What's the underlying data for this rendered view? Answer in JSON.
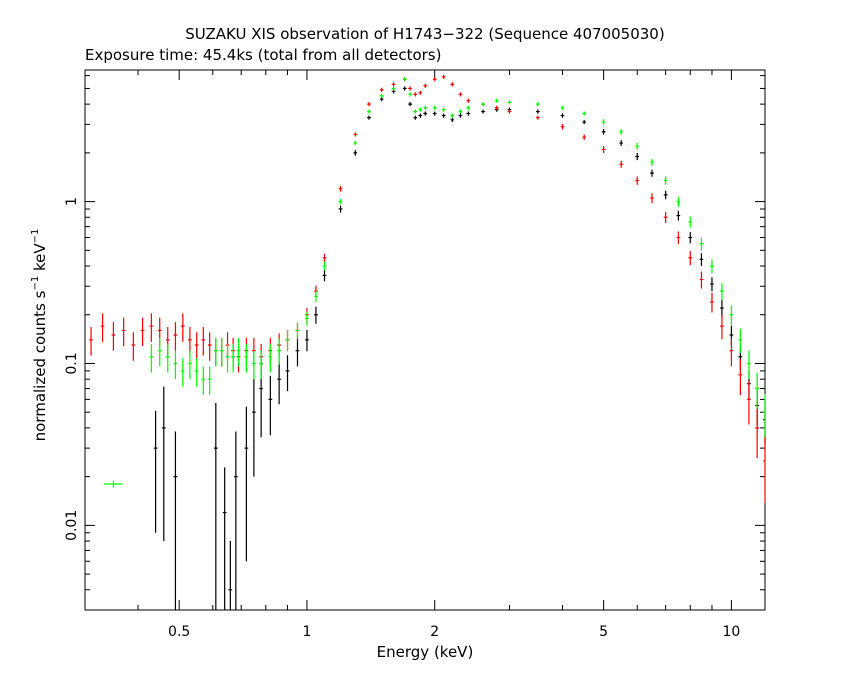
{
  "chart_data": {
    "type": "scatter",
    "title": "SUZAKU XIS observation of H1743−322 (Sequence 407005030)",
    "subtitle": "Exposure time: 45.4ks (total from all detectors)",
    "xlabel": "Energy (keV)",
    "ylabel_main": "normalized counts s",
    "ylabel_mid": " keV",
    "ylabel_sup": "−1",
    "xscale": "log",
    "yscale": "log",
    "xlim": [
      0.3,
      12
    ],
    "ylim": [
      0.003,
      6.5
    ],
    "x_ticks": [
      {
        "value": 0.5,
        "label": "0.5"
      },
      {
        "value": 1,
        "label": "1"
      },
      {
        "value": 2,
        "label": "2"
      },
      {
        "value": 5,
        "label": "5"
      },
      {
        "value": 10,
        "label": "10"
      }
    ],
    "y_ticks": [
      {
        "value": 0.01,
        "label": "0.01"
      },
      {
        "value": 0.1,
        "label": "0.1"
      },
      {
        "value": 1,
        "label": "1"
      }
    ],
    "grid": false,
    "series": [
      {
        "color": "#000000",
        "x": [
          0.44,
          0.46,
          0.49,
          0.61,
          0.64,
          0.66,
          0.68,
          0.72,
          0.75,
          0.78,
          0.82,
          0.86,
          0.9,
          0.95,
          1.0,
          1.05,
          1.1,
          1.2,
          1.3,
          1.4,
          1.5,
          1.6,
          1.7,
          1.75,
          1.8,
          1.85,
          1.9,
          2.0,
          2.1,
          2.2,
          2.3,
          2.4,
          2.6,
          2.8,
          3.0,
          3.5,
          4.0,
          4.5,
          5.0,
          5.5,
          6.0,
          6.5,
          7.0,
          7.5,
          8.0,
          8.5,
          9.0,
          9.5,
          10.0,
          10.5,
          11.0,
          11.5,
          12.0
        ],
        "y": [
          0.03,
          0.04,
          0.02,
          0.03,
          0.012,
          0.004,
          0.02,
          0.03,
          0.05,
          0.07,
          0.06,
          0.08,
          0.09,
          0.12,
          0.14,
          0.2,
          0.35,
          0.9,
          2.0,
          3.3,
          4.3,
          4.8,
          5.0,
          4.0,
          3.3,
          3.4,
          3.5,
          3.5,
          3.4,
          3.2,
          3.4,
          3.5,
          3.6,
          3.7,
          3.7,
          3.6,
          3.4,
          3.1,
          2.7,
          2.3,
          1.9,
          1.5,
          1.1,
          0.82,
          0.6,
          0.44,
          0.31,
          0.22,
          0.15,
          0.11,
          0.075,
          0.055,
          0.045
        ],
        "err": [
          0.7,
          0.8,
          0.9,
          0.9,
          0.9,
          1.0,
          0.9,
          0.8,
          0.6,
          0.5,
          0.4,
          0.3,
          0.25,
          0.2,
          0.15,
          0.12,
          0.08,
          0.05,
          0.04,
          0.03,
          0.03,
          0.03,
          0.03,
          0.03,
          0.03,
          0.03,
          0.03,
          0.03,
          0.03,
          0.03,
          0.03,
          0.03,
          0.03,
          0.03,
          0.03,
          0.03,
          0.03,
          0.03,
          0.04,
          0.04,
          0.05,
          0.05,
          0.06,
          0.07,
          0.08,
          0.09,
          0.1,
          0.12,
          0.14,
          0.17,
          0.2,
          0.25,
          0.3
        ]
      },
      {
        "color": "#ff0000",
        "x": [
          0.31,
          0.33,
          0.35,
          0.37,
          0.39,
          0.41,
          0.43,
          0.45,
          0.47,
          0.49,
          0.51,
          0.53,
          0.55,
          0.57,
          0.59,
          0.61,
          0.63,
          0.65,
          0.67,
          0.69,
          0.72,
          0.75,
          0.78,
          0.82,
          0.86,
          0.9,
          0.95,
          1.0,
          1.05,
          1.1,
          1.2,
          1.3,
          1.4,
          1.5,
          1.6,
          1.7,
          1.75,
          1.8,
          1.85,
          1.9,
          2.0,
          2.1,
          2.2,
          2.3,
          2.4,
          2.6,
          2.8,
          3.0,
          3.5,
          4.0,
          4.5,
          5.0,
          5.5,
          6.0,
          6.5,
          7.0,
          7.5,
          8.0,
          8.5,
          9.0,
          9.5,
          10.0,
          10.5,
          11.0,
          11.5,
          12.0
        ],
        "y": [
          0.14,
          0.17,
          0.15,
          0.16,
          0.13,
          0.16,
          0.17,
          0.16,
          0.14,
          0.15,
          0.17,
          0.14,
          0.13,
          0.14,
          0.13,
          0.12,
          0.12,
          0.13,
          0.12,
          0.11,
          0.12,
          0.12,
          0.11,
          0.12,
          0.13,
          0.14,
          0.16,
          0.2,
          0.28,
          0.45,
          1.2,
          2.6,
          4.0,
          4.9,
          5.3,
          5.7,
          5.0,
          4.6,
          4.7,
          5.2,
          5.7,
          5.9,
          5.3,
          4.6,
          4.2,
          4.0,
          3.8,
          3.6,
          3.3,
          2.9,
          2.5,
          2.1,
          1.7,
          1.35,
          1.05,
          0.8,
          0.6,
          0.45,
          0.33,
          0.24,
          0.17,
          0.12,
          0.085,
          0.06,
          0.04,
          0.025
        ],
        "err": [
          0.2,
          0.2,
          0.2,
          0.2,
          0.2,
          0.2,
          0.2,
          0.2,
          0.2,
          0.2,
          0.2,
          0.2,
          0.2,
          0.2,
          0.2,
          0.2,
          0.2,
          0.2,
          0.2,
          0.2,
          0.2,
          0.2,
          0.2,
          0.2,
          0.18,
          0.15,
          0.12,
          0.1,
          0.08,
          0.06,
          0.04,
          0.03,
          0.03,
          0.03,
          0.03,
          0.03,
          0.03,
          0.03,
          0.03,
          0.03,
          0.03,
          0.03,
          0.03,
          0.03,
          0.03,
          0.03,
          0.03,
          0.03,
          0.03,
          0.04,
          0.04,
          0.05,
          0.05,
          0.06,
          0.07,
          0.08,
          0.09,
          0.1,
          0.12,
          0.14,
          0.17,
          0.2,
          0.25,
          0.3,
          0.35,
          0.45
        ]
      },
      {
        "color": "#00ff00",
        "x": [
          0.35,
          0.43,
          0.45,
          0.47,
          0.49,
          0.51,
          0.53,
          0.55,
          0.57,
          0.59,
          0.61,
          0.63,
          0.65,
          0.67,
          0.69,
          0.72,
          0.75,
          0.78,
          0.82,
          0.86,
          0.9,
          0.95,
          1.0,
          1.05,
          1.1,
          1.2,
          1.3,
          1.4,
          1.5,
          1.6,
          1.7,
          1.75,
          1.8,
          1.85,
          1.9,
          2.0,
          2.1,
          2.2,
          2.3,
          2.4,
          2.6,
          2.8,
          3.0,
          3.5,
          4.0,
          4.5,
          5.0,
          5.5,
          6.0,
          6.5,
          7.0,
          7.5,
          8.0,
          8.5,
          9.0,
          9.5,
          10.0,
          10.5,
          11.0,
          11.5,
          12.0
        ],
        "y": [
          0.018,
          0.11,
          0.12,
          0.11,
          0.1,
          0.09,
          0.1,
          0.09,
          0.08,
          0.08,
          0.12,
          0.12,
          0.11,
          0.11,
          0.12,
          0.11,
          0.1,
          0.1,
          0.11,
          0.12,
          0.14,
          0.16,
          0.19,
          0.26,
          0.4,
          1.0,
          2.3,
          3.6,
          4.5,
          5.0,
          5.7,
          4.6,
          3.6,
          3.7,
          3.8,
          3.8,
          3.7,
          3.4,
          3.6,
          3.8,
          4.0,
          4.2,
          4.1,
          4.0,
          3.8,
          3.5,
          3.1,
          2.7,
          2.2,
          1.75,
          1.35,
          1.0,
          0.75,
          0.55,
          0.4,
          0.28,
          0.2,
          0.14,
          0.1,
          0.07,
          0.05
        ],
        "err": [
          0.05,
          0.2,
          0.2,
          0.2,
          0.2,
          0.2,
          0.2,
          0.2,
          0.2,
          0.2,
          0.2,
          0.2,
          0.2,
          0.2,
          0.2,
          0.2,
          0.2,
          0.2,
          0.2,
          0.18,
          0.15,
          0.12,
          0.1,
          0.08,
          0.06,
          0.04,
          0.03,
          0.03,
          0.03,
          0.03,
          0.03,
          0.03,
          0.03,
          0.03,
          0.03,
          0.03,
          0.03,
          0.03,
          0.03,
          0.03,
          0.03,
          0.03,
          0.03,
          0.03,
          0.03,
          0.03,
          0.04,
          0.04,
          0.05,
          0.05,
          0.06,
          0.07,
          0.08,
          0.09,
          0.1,
          0.12,
          0.14,
          0.17,
          0.2,
          0.25,
          0.3
        ],
        "xerr": [
          0.05,
          0.01,
          0.01,
          0.01,
          0.01,
          0.01,
          0.01,
          0.01,
          0.01,
          0.01,
          0.01,
          0.01,
          0.01,
          0.01,
          0.01,
          0.01,
          0.01,
          0.01,
          0.01,
          0.01,
          0.01,
          0.01,
          0.01,
          0.01,
          0.01,
          0.01,
          0.01,
          0.01,
          0.01,
          0.01,
          0.01,
          0.01,
          0.01,
          0.01,
          0.01,
          0.01,
          0.01,
          0.01,
          0.01,
          0.01,
          0.01,
          0.01,
          0.01,
          0.01,
          0.01,
          0.01,
          0.01,
          0.01,
          0.01,
          0.01,
          0.01,
          0.01,
          0.01,
          0.01,
          0.01,
          0.01,
          0.01,
          0.01,
          0.01,
          0.01,
          0.01
        ]
      }
    ]
  }
}
